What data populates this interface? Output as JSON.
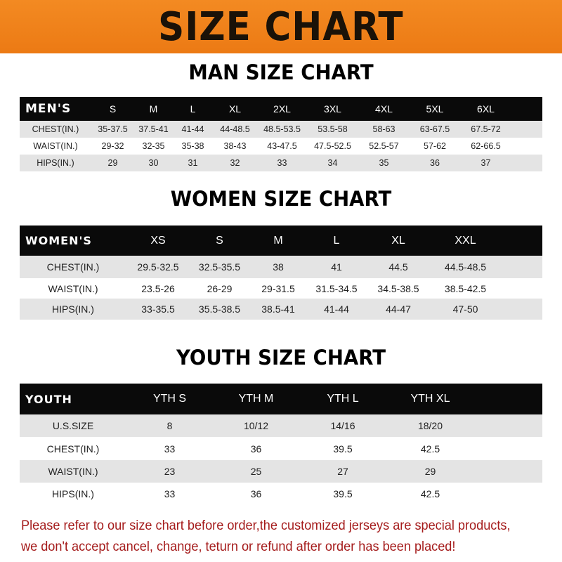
{
  "banner_title": "SIZE CHART",
  "men": {
    "title": "MAN SIZE CHART",
    "header": [
      "MEN'S",
      "S",
      "M",
      "L",
      "XL",
      "2XL",
      "3XL",
      "4XL",
      "5XL",
      "6XL"
    ],
    "rows": [
      [
        "CHEST(IN.)",
        "35-37.5",
        "37.5-41",
        "41-44",
        "44-48.5",
        "48.5-53.5",
        "53.5-58",
        "58-63",
        "63-67.5",
        "67.5-72"
      ],
      [
        "WAIST(IN.)",
        "29-32",
        "32-35",
        "35-38",
        "38-43",
        "43-47.5",
        "47.5-52.5",
        "52.5-57",
        "57-62",
        "62-66.5"
      ],
      [
        "HIPS(IN.)",
        "29",
        "30",
        "31",
        "32",
        "33",
        "34",
        "35",
        "36",
        "37"
      ]
    ]
  },
  "women": {
    "title": "WOMEN SIZE CHART",
    "header": [
      "WOMEN'S",
      "XS",
      "S",
      "M",
      "L",
      "XL",
      "XXL"
    ],
    "rows": [
      [
        "CHEST(IN.)",
        "29.5-32.5",
        "32.5-35.5",
        "38",
        "41",
        "44.5",
        "44.5-48.5"
      ],
      [
        "WAIST(IN.)",
        "23.5-26",
        "26-29",
        "29-31.5",
        "31.5-34.5",
        "34.5-38.5",
        "38.5-42.5"
      ],
      [
        "HIPS(IN.)",
        "33-35.5",
        "35.5-38.5",
        "38.5-41",
        "41-44",
        "44-47",
        "47-50"
      ]
    ]
  },
  "youth": {
    "title": "YOUTH SIZE CHART",
    "header": [
      "YOUTH",
      "YTH S",
      "YTH M",
      "YTH L",
      "YTH XL"
    ],
    "rows": [
      [
        "U.S.SIZE",
        "8",
        "10/12",
        "14/16",
        "18/20"
      ],
      [
        "CHEST(IN.)",
        "33",
        "36",
        "39.5",
        "42.5"
      ],
      [
        "WAIST(IN.)",
        "23",
        "25",
        "27",
        "29"
      ],
      [
        "HIPS(IN.)",
        "33",
        "36",
        "39.5",
        "42.5"
      ]
    ]
  },
  "note": {
    "line1": "Please refer to our size chart before order,the customized jerseys are special products,",
    "line2": "we don't accept cancel, change, teturn or refund after order has been placed!"
  },
  "colors": {
    "banner": "#ec7a14",
    "header_row": "#0a0a0a",
    "stripe": "#e4e4e4",
    "note_text": "#a51c1c"
  }
}
